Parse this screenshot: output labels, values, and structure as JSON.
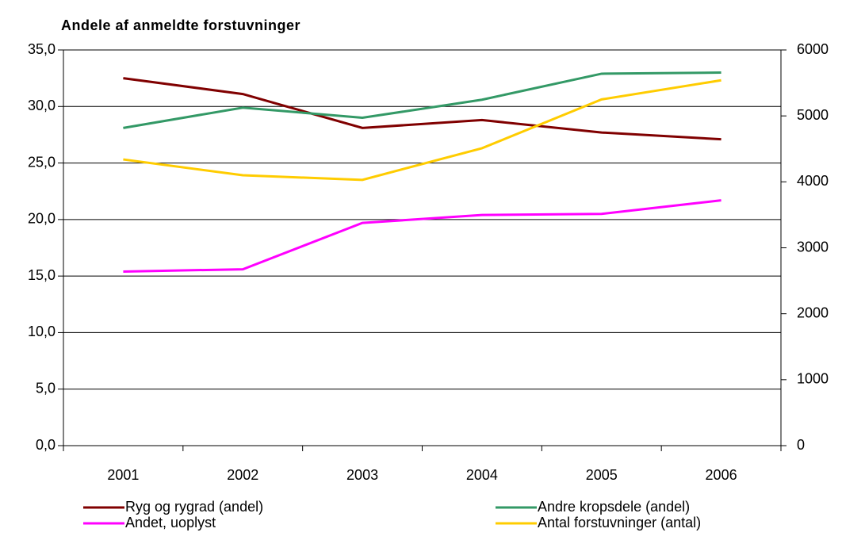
{
  "chart_data": {
    "type": "line",
    "title": "Andele af anmeldte forstuvninger",
    "categories": [
      "2001",
      "2002",
      "2003",
      "2004",
      "2005",
      "2006"
    ],
    "series": [
      {
        "name": "Ryg og rygrad (andel)",
        "color": "#800000",
        "values": [
          32.5,
          31.1,
          28.1,
          28.8,
          27.7,
          27.1
        ]
      },
      {
        "name": "Andre kropsdele (andel)",
        "color": "#339966",
        "values": [
          28.1,
          29.9,
          29.0,
          30.6,
          32.9,
          33.0
        ]
      },
      {
        "name": "Andet, uoplyst",
        "color": "#ff00ff",
        "values": [
          15.4,
          15.6,
          19.7,
          20.4,
          20.5,
          21.7
        ]
      },
      {
        "name": "Antal forstuvninger (antal)",
        "color": "#ffcc00",
        "axis": "y2",
        "values": [
          4340,
          4100,
          4030,
          4510,
          5250,
          5540
        ]
      }
    ],
    "ylim": [
      0,
      35
    ],
    "yticks": [
      {
        "value": 0,
        "label": "0,0"
      },
      {
        "value": 5,
        "label": "5,0"
      },
      {
        "value": 10,
        "label": "10,0"
      },
      {
        "value": 15,
        "label": "15,0"
      },
      {
        "value": 20,
        "label": "20,0"
      },
      {
        "value": 25,
        "label": "25,0"
      },
      {
        "value": 30,
        "label": "30,0"
      },
      {
        "value": 35,
        "label": "35,0"
      }
    ],
    "y2lim": [
      0,
      6000
    ],
    "y2ticks": [
      0,
      1000,
      2000,
      3000,
      4000,
      5000,
      6000
    ],
    "grid": true,
    "legend": "bottom"
  }
}
